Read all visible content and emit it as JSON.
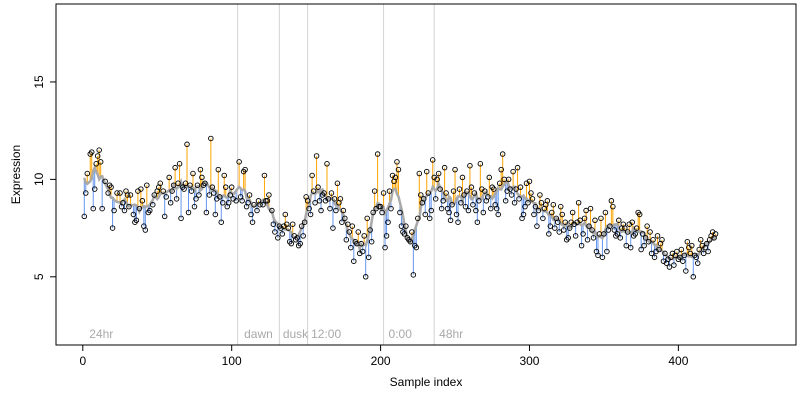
{
  "chart_data": {
    "type": "scatter",
    "title": "",
    "xlabel": "Sample index",
    "ylabel": "Expression",
    "xlim": [
      -18,
      479
    ],
    "ylim": [
      1.5,
      19.0
    ],
    "x_ticks": [
      0,
      100,
      200,
      300,
      400
    ],
    "y_ticks": [
      5,
      10,
      15
    ],
    "grid": false,
    "legend": "none",
    "colors": {
      "above_line": "#ffa500",
      "below_line": "#6495ed",
      "smooth_line": "#a9a9a9",
      "marker_edge": "#000000",
      "period_divider": "#d3d3d3",
      "period_label": "#a9a9a9"
    },
    "period_markers": [
      {
        "x": 104,
        "label": ""
      },
      {
        "x": 132,
        "label": ""
      },
      {
        "x": 151,
        "label": ""
      },
      {
        "x": 202,
        "label": ""
      },
      {
        "x": 236,
        "label": ""
      }
    ],
    "period_labels": [
      {
        "x": 3,
        "label": "24hr"
      },
      {
        "x": 107,
        "label": "dawn"
      },
      {
        "x": 133,
        "label": "dusk"
      },
      {
        "x": 152,
        "label": "12:00"
      },
      {
        "x": 204,
        "label": "0:00"
      },
      {
        "x": 238,
        "label": "48hr"
      }
    ],
    "points": [
      [
        1,
        8.1
      ],
      [
        2,
        9.3
      ],
      [
        3,
        10.3
      ],
      [
        5,
        11.3
      ],
      [
        6,
        11.4
      ],
      [
        7,
        8.5
      ],
      [
        8,
        9.5
      ],
      [
        9,
        10.8
      ],
      [
        10,
        11.2
      ],
      [
        11,
        11.5
      ],
      [
        12,
        10.9
      ],
      [
        13,
        8.5
      ],
      [
        15,
        9.9
      ],
      [
        17,
        9.3
      ],
      [
        18,
        9.7
      ],
      [
        19,
        9.6
      ],
      [
        20,
        7.5
      ],
      [
        21,
        8.4
      ],
      [
        23,
        9.3
      ],
      [
        25,
        9.3
      ],
      [
        26,
        8.6
      ],
      [
        27,
        8.8
      ],
      [
        28,
        8.4
      ],
      [
        29,
        9.4
      ],
      [
        30,
        9.2
      ],
      [
        31,
        8.6
      ],
      [
        32,
        9.2
      ],
      [
        34,
        8.2
      ],
      [
        35,
        7.8
      ],
      [
        36,
        7.9
      ],
      [
        37,
        9.4
      ],
      [
        38,
        8.5
      ],
      [
        39,
        9.5
      ],
      [
        40,
        8.9
      ],
      [
        41,
        7.6
      ],
      [
        42,
        7.4
      ],
      [
        43,
        9.7
      ],
      [
        44,
        8.3
      ],
      [
        45,
        8.4
      ],
      [
        47,
        8.7
      ],
      [
        48,
        9.2
      ],
      [
        50,
        9.4
      ],
      [
        51,
        9.6
      ],
      [
        52,
        9.8
      ],
      [
        54,
        9.4
      ],
      [
        55,
        8.1
      ],
      [
        56,
        9.1
      ],
      [
        58,
        10.1
      ],
      [
        59,
        8.8
      ],
      [
        60,
        9.4
      ],
      [
        61,
        9.7
      ],
      [
        62,
        10.6
      ],
      [
        63,
        9.0
      ],
      [
        64,
        9.8
      ],
      [
        65,
        10.8
      ],
      [
        66,
        8.0
      ],
      [
        67,
        9.6
      ],
      [
        68,
        9.5
      ],
      [
        69,
        9.8
      ],
      [
        70,
        11.8
      ],
      [
        71,
        8.3
      ],
      [
        72,
        9.7
      ],
      [
        73,
        9.4
      ],
      [
        74,
        10.3
      ],
      [
        75,
        8.6
      ],
      [
        76,
        9.0
      ],
      [
        77,
        9.7
      ],
      [
        78,
        9.2
      ],
      [
        79,
        10.5
      ],
      [
        80,
        10.1
      ],
      [
        81,
        9.7
      ],
      [
        82,
        9.8
      ],
      [
        83,
        8.3
      ],
      [
        85,
        9.2
      ],
      [
        86,
        12.1
      ],
      [
        87,
        9.6
      ],
      [
        88,
        9.3
      ],
      [
        89,
        8.2
      ],
      [
        90,
        9.0
      ],
      [
        91,
        10.5
      ],
      [
        92,
        9.1
      ],
      [
        93,
        7.8
      ],
      [
        94,
        8.8
      ],
      [
        95,
        10.2
      ],
      [
        96,
        9.6
      ],
      [
        97,
        8.6
      ],
      [
        98,
        8.8
      ],
      [
        99,
        9.2
      ],
      [
        100,
        9.6
      ],
      [
        101,
        9.0
      ],
      [
        103,
        8.9
      ],
      [
        105,
        10.9
      ],
      [
        106,
        9.1
      ],
      [
        107,
        8.9
      ],
      [
        108,
        10.4
      ],
      [
        109,
        10.5
      ],
      [
        110,
        8.6
      ],
      [
        111,
        8.8
      ],
      [
        112,
        9.2
      ],
      [
        113,
        8.2
      ],
      [
        114,
        7.8
      ],
      [
        115,
        8.7
      ],
      [
        117,
        8.4
      ],
      [
        118,
        8.9
      ],
      [
        119,
        8.7
      ],
      [
        121,
        8.7
      ],
      [
        122,
        10.2
      ],
      [
        123,
        8.9
      ],
      [
        124,
        8.9
      ],
      [
        125,
        9.2
      ],
      [
        127,
        8.4
      ],
      [
        128,
        7.7
      ],
      [
        129,
        7.3
      ],
      [
        131,
        7.0
      ],
      [
        132,
        7.6
      ],
      [
        133,
        7.5
      ],
      [
        134,
        7.2
      ],
      [
        135,
        7.6
      ],
      [
        136,
        8.2
      ],
      [
        137,
        7.7
      ],
      [
        138,
        7.5
      ],
      [
        139,
        6.8
      ],
      [
        140,
        6.7
      ],
      [
        141,
        7.7
      ],
      [
        142,
        7.1
      ],
      [
        143,
        6.9
      ],
      [
        144,
        7.0
      ],
      [
        145,
        6.6
      ],
      [
        146,
        6.7
      ],
      [
        147,
        7.6
      ],
      [
        148,
        7.1
      ],
      [
        149,
        7.8
      ],
      [
        150,
        9.1
      ],
      [
        151,
        8.9
      ],
      [
        152,
        8.5
      ],
      [
        153,
        8.2
      ],
      [
        154,
        10.2
      ],
      [
        155,
        9.4
      ],
      [
        156,
        8.8
      ],
      [
        157,
        11.2
      ],
      [
        158,
        9.6
      ],
      [
        159,
        8.9
      ],
      [
        160,
        8.4
      ],
      [
        161,
        9.2
      ],
      [
        162,
        9.3
      ],
      [
        163,
        8.9
      ],
      [
        164,
        10.8
      ],
      [
        165,
        9.0
      ],
      [
        166,
        8.5
      ],
      [
        167,
        9.3
      ],
      [
        168,
        7.5
      ],
      [
        169,
        9.0
      ],
      [
        170,
        8.4
      ],
      [
        171,
        9.8
      ],
      [
        172,
        8.8
      ],
      [
        173,
        9.0
      ],
      [
        174,
        7.8
      ],
      [
        175,
        8.4
      ],
      [
        176,
        8.0
      ],
      [
        177,
        6.9
      ],
      [
        178,
        7.7
      ],
      [
        179,
        7.3
      ],
      [
        180,
        6.5
      ],
      [
        181,
        7.6
      ],
      [
        182,
        5.8
      ],
      [
        183,
        6.8
      ],
      [
        184,
        6.7
      ],
      [
        185,
        7.3
      ],
      [
        186,
        6.2
      ],
      [
        187,
        6.7
      ],
      [
        188,
        6.3
      ],
      [
        189,
        7.1
      ],
      [
        190,
        5.0
      ],
      [
        191,
        8.0
      ],
      [
        192,
        6.0
      ],
      [
        193,
        7.4
      ],
      [
        194,
        6.8
      ],
      [
        195,
        8.3
      ],
      [
        196,
        9.4
      ],
      [
        197,
        8.5
      ],
      [
        198,
        11.3
      ],
      [
        199,
        8.6
      ],
      [
        200,
        8.6
      ],
      [
        201,
        8.3
      ],
      [
        202,
        9.3
      ],
      [
        203,
        6.5
      ],
      [
        204,
        7.1
      ],
      [
        205,
        7.8
      ],
      [
        206,
        9.4
      ],
      [
        207,
        8.5
      ],
      [
        208,
        10.2
      ],
      [
        209,
        9.9
      ],
      [
        210,
        10.1
      ],
      [
        211,
        10.9
      ],
      [
        212,
        10.5
      ],
      [
        213,
        8.3
      ],
      [
        214,
        7.6
      ],
      [
        215,
        7.3
      ],
      [
        216,
        7.2
      ],
      [
        217,
        7.6
      ],
      [
        218,
        7.0
      ],
      [
        219,
        6.9
      ],
      [
        220,
        6.8
      ],
      [
        221,
        7.3
      ],
      [
        222,
        5.1
      ],
      [
        223,
        6.6
      ],
      [
        224,
        6.5
      ],
      [
        225,
        8.0
      ],
      [
        226,
        10.3
      ],
      [
        227,
        9.2
      ],
      [
        228,
        8.8
      ],
      [
        229,
        9.0
      ],
      [
        230,
        8.2
      ],
      [
        231,
        10.4
      ],
      [
        232,
        9.3
      ],
      [
        233,
        8.0
      ],
      [
        234,
        8.4
      ],
      [
        235,
        11.0
      ],
      [
        236,
        10.1
      ],
      [
        237,
        9.0
      ],
      [
        238,
        10.0
      ],
      [
        239,
        10.3
      ],
      [
        240,
        9.5
      ],
      [
        241,
        8.5
      ],
      [
        242,
        8.9
      ],
      [
        243,
        10.6
      ],
      [
        244,
        9.3
      ],
      [
        245,
        8.5
      ],
      [
        246,
        8.3
      ],
      [
        247,
        7.9
      ],
      [
        248,
        8.7
      ],
      [
        249,
        9.4
      ],
      [
        250,
        10.5
      ],
      [
        251,
        8.2
      ],
      [
        252,
        7.8
      ],
      [
        253,
        9.5
      ],
      [
        254,
        8.8
      ],
      [
        255,
        10.1
      ],
      [
        256,
        9.2
      ],
      [
        257,
        8.6
      ],
      [
        258,
        9.4
      ],
      [
        259,
        8.4
      ],
      [
        260,
        10.7
      ],
      [
        261,
        9.6
      ],
      [
        262,
        8.7
      ],
      [
        263,
        9.3
      ],
      [
        264,
        8.4
      ],
      [
        265,
        7.8
      ],
      [
        266,
        8.9
      ],
      [
        267,
        10.8
      ],
      [
        268,
        9.5
      ],
      [
        269,
        8.3
      ],
      [
        270,
        9.4
      ],
      [
        271,
        8.9
      ],
      [
        272,
        9.1
      ],
      [
        273,
        10.1
      ],
      [
        274,
        8.5
      ],
      [
        275,
        9.6
      ],
      [
        276,
        9.5
      ],
      [
        277,
        8.7
      ],
      [
        278,
        8.5
      ],
      [
        279,
        8.2
      ],
      [
        280,
        9.8
      ],
      [
        281,
        10.5
      ],
      [
        282,
        11.3
      ],
      [
        283,
        10.0
      ],
      [
        284,
        8.9
      ],
      [
        285,
        9.4
      ],
      [
        286,
        10.0
      ],
      [
        287,
        9.5
      ],
      [
        288,
        9.2
      ],
      [
        289,
        10.4
      ],
      [
        290,
        8.8
      ],
      [
        291,
        9.5
      ],
      [
        292,
        10.6
      ],
      [
        293,
        9.0
      ],
      [
        294,
        9.6
      ],
      [
        295,
        8.0
      ],
      [
        296,
        8.2
      ],
      [
        297,
        8.6
      ],
      [
        298,
        9.8
      ],
      [
        299,
        8.8
      ],
      [
        300,
        9.9
      ],
      [
        301,
        9.3
      ],
      [
        302,
        9.0
      ],
      [
        303,
        8.2
      ],
      [
        304,
        8.6
      ],
      [
        305,
        7.6
      ],
      [
        306,
        8.4
      ],
      [
        307,
        9.2
      ],
      [
        308,
        8.8
      ],
      [
        309,
        8.0
      ],
      [
        310,
        8.5
      ],
      [
        311,
        8.7
      ],
      [
        312,
        8.9
      ],
      [
        313,
        7.2
      ],
      [
        314,
        7.6
      ],
      [
        315,
        8.3
      ],
      [
        316,
        8.7
      ],
      [
        317,
        7.5
      ],
      [
        318,
        8.0
      ],
      [
        319,
        7.8
      ],
      [
        320,
        7.3
      ],
      [
        321,
        8.6
      ],
      [
        322,
        8.2
      ],
      [
        323,
        7.4
      ],
      [
        324,
        7.8
      ],
      [
        325,
        6.9
      ],
      [
        326,
        7.0
      ],
      [
        327,
        7.5
      ],
      [
        328,
        7.8
      ],
      [
        329,
        8.3
      ],
      [
        330,
        7.7
      ],
      [
        331,
        7.1
      ],
      [
        332,
        7.8
      ],
      [
        333,
        8.8
      ],
      [
        334,
        7.9
      ],
      [
        335,
        6.6
      ],
      [
        336,
        7.2
      ],
      [
        337,
        8.0
      ],
      [
        338,
        8.4
      ],
      [
        339,
        6.9
      ],
      [
        340,
        7.6
      ],
      [
        341,
        8.5
      ],
      [
        342,
        7.4
      ],
      [
        343,
        7.0
      ],
      [
        344,
        7.9
      ],
      [
        345,
        6.3
      ],
      [
        346,
        6.1
      ],
      [
        347,
        7.2
      ],
      [
        348,
        8.0
      ],
      [
        349,
        6.0
      ],
      [
        350,
        7.2
      ],
      [
        351,
        8.3
      ],
      [
        352,
        6.3
      ],
      [
        353,
        7.4
      ],
      [
        354,
        7.6
      ],
      [
        355,
        8.9
      ],
      [
        356,
        8.6
      ],
      [
        357,
        7.4
      ],
      [
        358,
        7.1
      ],
      [
        359,
        7.2
      ],
      [
        360,
        7.9
      ],
      [
        361,
        7.0
      ],
      [
        362,
        7.5
      ],
      [
        363,
        7.7
      ],
      [
        364,
        7.5
      ],
      [
        365,
        6.6
      ],
      [
        366,
        7.3
      ],
      [
        367,
        7.7
      ],
      [
        368,
        6.5
      ],
      [
        369,
        7.8
      ],
      [
        370,
        7.1
      ],
      [
        371,
        7.2
      ],
      [
        372,
        7.5
      ],
      [
        373,
        8.3
      ],
      [
        374,
        8.2
      ],
      [
        375,
        6.4
      ],
      [
        376,
        7.2
      ],
      [
        377,
        6.6
      ],
      [
        378,
        7.0
      ],
      [
        379,
        7.6
      ],
      [
        380,
        6.8
      ],
      [
        381,
        7.3
      ],
      [
        382,
        6.2
      ],
      [
        383,
        6.9
      ],
      [
        384,
        6.0
      ],
      [
        385,
        6.3
      ],
      [
        386,
        7.1
      ],
      [
        387,
        6.4
      ],
      [
        388,
        6.7
      ],
      [
        389,
        6.9
      ],
      [
        390,
        5.8
      ],
      [
        391,
        6.2
      ],
      [
        392,
        5.7
      ],
      [
        393,
        5.9
      ],
      [
        394,
        5.5
      ],
      [
        395,
        6.0
      ],
      [
        396,
        6.2
      ],
      [
        397,
        5.6
      ],
      [
        398,
        6.1
      ],
      [
        399,
        6.3
      ],
      [
        400,
        5.9
      ],
      [
        401,
        6.0
      ],
      [
        402,
        6.4
      ],
      [
        403,
        5.8
      ],
      [
        404,
        6.1
      ],
      [
        405,
        5.3
      ],
      [
        406,
        6.8
      ],
      [
        407,
        6.5
      ],
      [
        408,
        6.2
      ],
      [
        409,
        6.6
      ],
      [
        410,
        5.0
      ],
      [
        411,
        6.1
      ],
      [
        412,
        6.0
      ],
      [
        413,
        5.7
      ],
      [
        414,
        6.4
      ],
      [
        415,
        6.9
      ],
      [
        416,
        6.6
      ],
      [
        417,
        6.2
      ],
      [
        418,
        6.5
      ],
      [
        419,
        6.7
      ],
      [
        420,
        6.3
      ],
      [
        421,
        6.9
      ],
      [
        422,
        7.1
      ],
      [
        423,
        7.3
      ],
      [
        424,
        7.0
      ],
      [
        425,
        7.2
      ]
    ]
  }
}
